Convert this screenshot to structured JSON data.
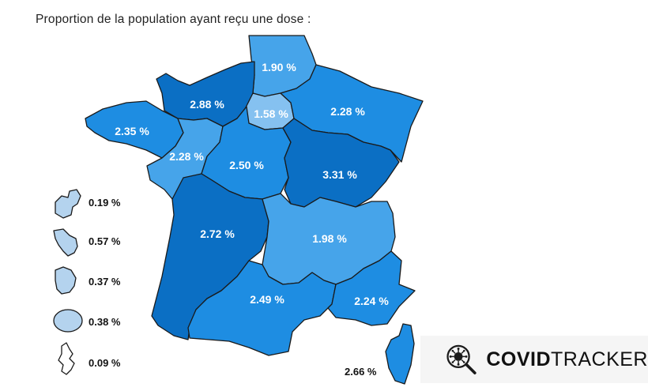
{
  "title": "Proportion de la population ayant reçu une dose :",
  "colors": {
    "dark": "#0b6fc4",
    "medium": "#1e8de2",
    "light": "#46a4ea",
    "pale": "#85c1f0",
    "overseas": "#b4d3ee"
  },
  "regions": [
    {
      "name": "Hauts-de-France",
      "value": "1.90 %"
    },
    {
      "name": "Normandie",
      "value": "2.88 %"
    },
    {
      "name": "Île-de-France",
      "value": "1.58 %"
    },
    {
      "name": "Grand Est",
      "value": "2.28 %"
    },
    {
      "name": "Bretagne",
      "value": "2.35 %"
    },
    {
      "name": "Pays de la Loire",
      "value": "2.28 %"
    },
    {
      "name": "Centre-Val de Loire",
      "value": "2.50 %"
    },
    {
      "name": "Bourgogne-Franche-Comté",
      "value": "3.31 %"
    },
    {
      "name": "Nouvelle-Aquitaine",
      "value": "2.72 %"
    },
    {
      "name": "Auvergne-Rhône-Alpes",
      "value": "1.98 %"
    },
    {
      "name": "Occitanie",
      "value": "2.49 %"
    },
    {
      "name": "Provence-Alpes-Côte d'Azur",
      "value": "2.24 %"
    },
    {
      "name": "Corse",
      "value": "2.66 %"
    }
  ],
  "overseas": [
    {
      "name": "Guadeloupe",
      "value": "0.19 %"
    },
    {
      "name": "Martinique",
      "value": "0.57 %"
    },
    {
      "name": "Guyane",
      "value": "0.37 %"
    },
    {
      "name": "La Réunion",
      "value": "0.38 %"
    },
    {
      "name": "Mayotte",
      "value": "0.09 %"
    }
  ],
  "brand": {
    "bold": "COVID",
    "light": "TRACKER",
    "icon": "virus-magnifier-icon"
  }
}
